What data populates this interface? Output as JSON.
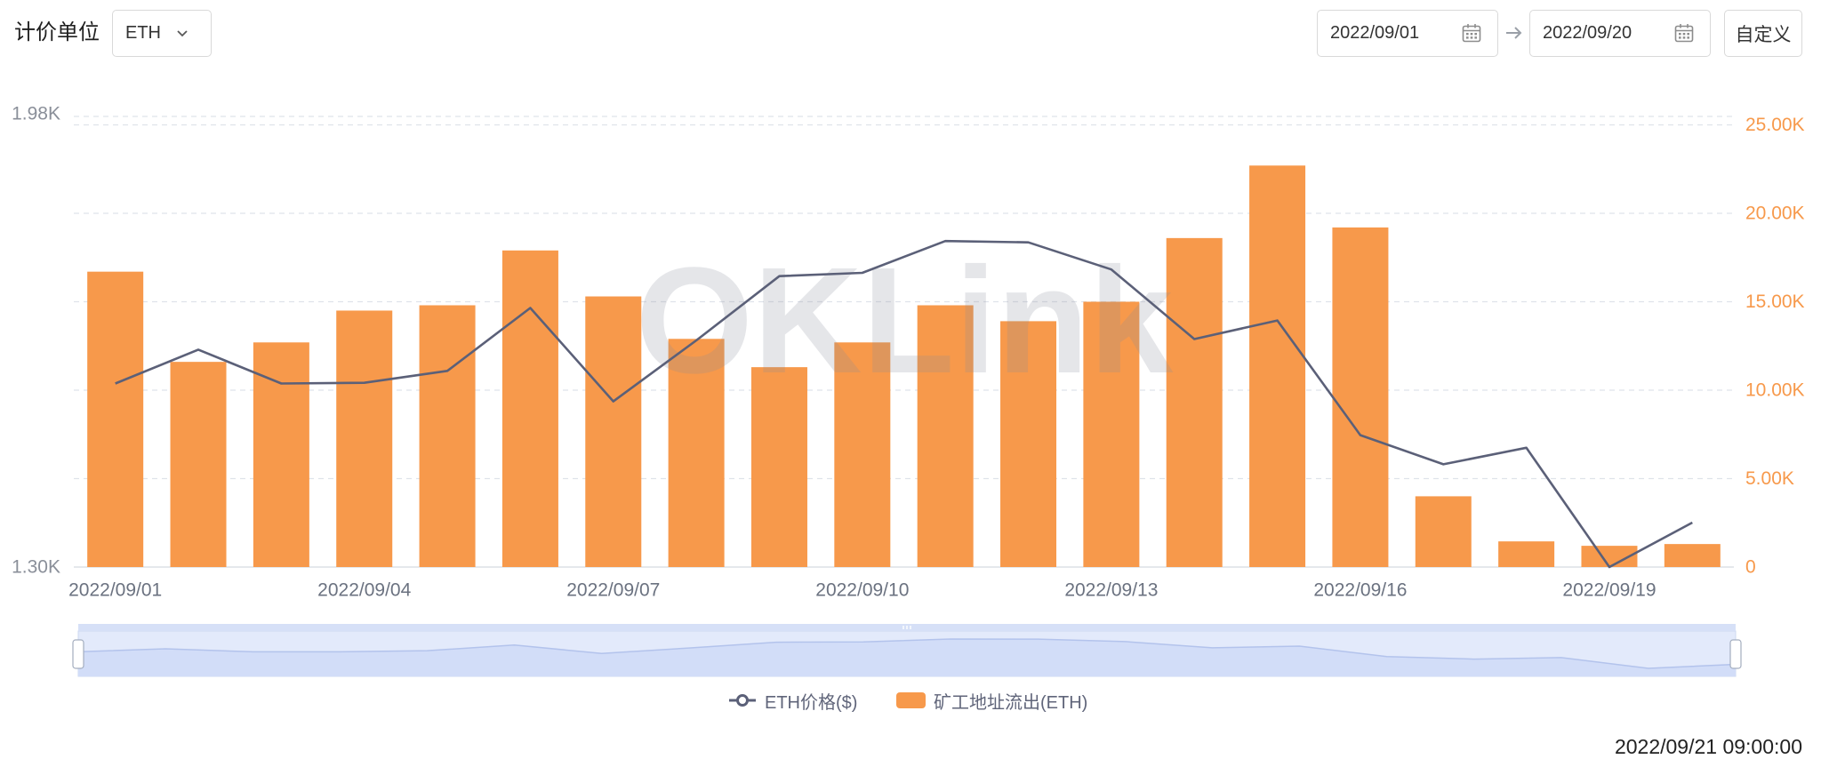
{
  "toolbar": {
    "unit_label": "计价单位",
    "unit_select": {
      "value": "ETH"
    },
    "date_range": {
      "start": "2022/09/01",
      "end": "2022/09/20"
    },
    "custom_button": "自定义"
  },
  "icons": {
    "unit_select": "chevron-down-icon",
    "date_picker": "calendar-icon",
    "range_separator": "arrow-right-icon"
  },
  "watermark": "OKLink",
  "data_zoom": {
    "start_percent": 0,
    "end_percent": 100
  },
  "updated_at": "2022/09/21 09:00:00",
  "chart_data": {
    "type": "bar",
    "categories": [
      "2022/09/01",
      "2022/09/02",
      "2022/09/03",
      "2022/09/04",
      "2022/09/05",
      "2022/09/06",
      "2022/09/07",
      "2022/09/08",
      "2022/09/09",
      "2022/09/10",
      "2022/09/11",
      "2022/09/12",
      "2022/09/13",
      "2022/09/14",
      "2022/09/15",
      "2022/09/16",
      "2022/09/17",
      "2022/09/18",
      "2022/09/19",
      "2022/09/20"
    ],
    "xticks": [
      "2022/09/01",
      "2022/09/04",
      "2022/09/07",
      "2022/09/10",
      "2022/09/13",
      "2022/09/16",
      "2022/09/19"
    ],
    "series": [
      {
        "name": "ETH价格($)",
        "type": "line",
        "axis": "left",
        "color": "#5b6078",
        "values": [
          1577,
          1628,
          1577,
          1578,
          1596,
          1691,
          1550,
          1642,
          1739,
          1744,
          1792,
          1790,
          1749,
          1644,
          1672,
          1499,
          1455,
          1480,
          1300,
          1367
        ]
      },
      {
        "name": "矿工地址流出(ETH)",
        "type": "bar",
        "axis": "right",
        "color": "#f7994b",
        "values": [
          16700,
          11600,
          12700,
          14500,
          14800,
          17900,
          15300,
          12900,
          11300,
          12700,
          14800,
          13900,
          15000,
          18600,
          22700,
          19200,
          4000,
          1450,
          1200,
          1300
        ]
      }
    ],
    "y_left": {
      "ticks": [
        "1.98K",
        "1.30K"
      ],
      "range": [
        1300,
        1980
      ]
    },
    "y_right": {
      "ticks": [
        "25.00K",
        "20.00K",
        "15.00K",
        "10.00K",
        "5.00K",
        "0"
      ],
      "range": [
        0,
        25000
      ]
    },
    "grid": true,
    "legend_position": "bottom"
  }
}
